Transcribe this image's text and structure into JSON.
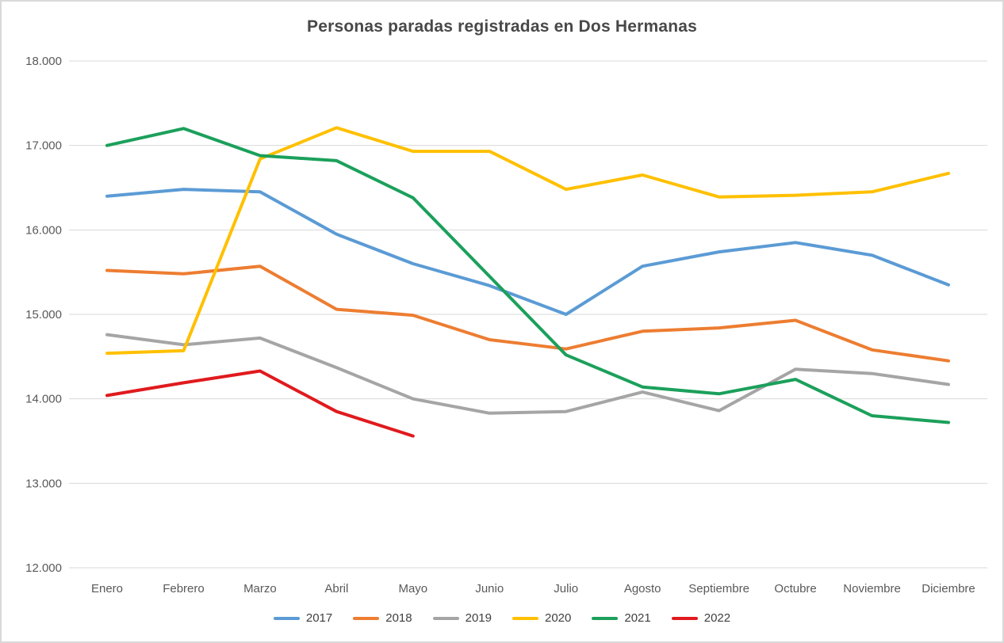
{
  "chart_data": {
    "type": "line",
    "title": "Personas paradas registradas en Dos Hermanas",
    "categories": [
      "Enero",
      "Febrero",
      "Marzo",
      "Abril",
      "Mayo",
      "Junio",
      "Julio",
      "Agosto",
      "Septiembre",
      "Octubre",
      "Noviembre",
      "Diciembre"
    ],
    "series": [
      {
        "name": "2017",
        "color": "#5B9BD5",
        "values": [
          16400,
          16480,
          16450,
          15950,
          15600,
          15340,
          15000,
          15570,
          15740,
          15850,
          15700,
          15350
        ]
      },
      {
        "name": "2018",
        "color": "#ED7D31",
        "values": [
          15520,
          15480,
          15570,
          15060,
          14990,
          14700,
          14590,
          14800,
          14840,
          14930,
          14580,
          14450
        ]
      },
      {
        "name": "2019",
        "color": "#A5A5A5",
        "values": [
          14760,
          14640,
          14720,
          14370,
          14000,
          13830,
          13850,
          14080,
          13860,
          14350,
          14300,
          14170
        ]
      },
      {
        "name": "2020",
        "color": "#FFC000",
        "values": [
          14540,
          14570,
          16840,
          17210,
          16930,
          16930,
          16480,
          16650,
          16390,
          16410,
          16450,
          16670
        ]
      },
      {
        "name": "2021",
        "color": "#1BA05B",
        "values": [
          17000,
          17200,
          16880,
          16820,
          16380,
          15450,
          14520,
          14140,
          14060,
          14230,
          13800,
          13720
        ]
      },
      {
        "name": "2022",
        "color": "#E01A1E",
        "values": [
          14040,
          14190,
          14330,
          13850,
          13560,
          null,
          null,
          null,
          null,
          null,
          null,
          null
        ]
      }
    ],
    "ylim": [
      12000,
      18000
    ],
    "y_tick_step": 1000,
    "y_tick_labels": [
      "12.000",
      "13.000",
      "14.000",
      "15.000",
      "16.000",
      "17.000",
      "18.000"
    ],
    "xlabel": "",
    "ylabel": "",
    "grid": "horizontal",
    "legend_position": "bottom"
  },
  "colors": {
    "grid": "#D9D9D9",
    "axis_text": "#595959",
    "title_text": "#484848",
    "background": "#FFFFFF",
    "border": "#D9D9D9"
  }
}
